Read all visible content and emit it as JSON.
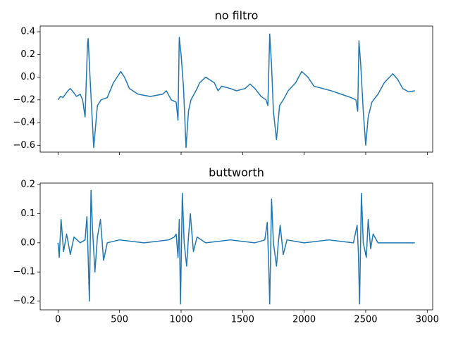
{
  "chart_data": [
    {
      "type": "line",
      "title": "no filtro",
      "color": "#1f77b4",
      "x": [
        0,
        20,
        40,
        60,
        80,
        100,
        130,
        150,
        180,
        200,
        220,
        240,
        245,
        260,
        290,
        320,
        350,
        400,
        450,
        510,
        540,
        580,
        650,
        750,
        850,
        880,
        920,
        960,
        975,
        985,
        1000,
        1020,
        1040,
        1060,
        1080,
        1130,
        1150,
        1200,
        1270,
        1300,
        1330,
        1400,
        1450,
        1520,
        1560,
        1600,
        1650,
        1690,
        1705,
        1720,
        1735,
        1750,
        1775,
        1800,
        1830,
        1870,
        1930,
        1980,
        2030,
        2080,
        2150,
        2220,
        2300,
        2380,
        2420,
        2435,
        2445,
        2460,
        2480,
        2500,
        2520,
        2550,
        2600,
        2650,
        2720,
        2760,
        2800,
        2850,
        2899
      ],
      "values": [
        -0.2,
        -0.17,
        -0.18,
        -0.15,
        -0.12,
        -0.1,
        -0.14,
        -0.17,
        -0.15,
        -0.2,
        -0.35,
        0.3,
        0.34,
        0.0,
        -0.62,
        -0.25,
        -0.2,
        -0.18,
        -0.05,
        0.05,
        0.0,
        -0.1,
        -0.15,
        -0.17,
        -0.15,
        -0.12,
        -0.2,
        -0.22,
        -0.38,
        0.35,
        0.2,
        -0.1,
        -0.62,
        -0.3,
        -0.2,
        -0.1,
        -0.05,
        0.0,
        -0.05,
        -0.12,
        -0.08,
        -0.1,
        -0.12,
        -0.1,
        -0.06,
        -0.1,
        -0.17,
        -0.2,
        -0.25,
        0.38,
        0.1,
        -0.3,
        -0.55,
        -0.25,
        -0.2,
        -0.12,
        -0.05,
        0.05,
        0.0,
        -0.08,
        -0.1,
        -0.12,
        -0.15,
        -0.18,
        -0.2,
        -0.3,
        0.32,
        0.1,
        -0.3,
        -0.6,
        -0.35,
        -0.22,
        -0.15,
        -0.05,
        0.03,
        -0.02,
        -0.1,
        -0.13,
        -0.12
      ],
      "xlim": [
        -145,
        3044
      ],
      "ylim": [
        -0.66,
        0.45
      ],
      "yticks": [
        {
          "value": -0.6,
          "label": "−0.6"
        },
        {
          "value": -0.4,
          "label": "−0.4"
        },
        {
          "value": -0.2,
          "label": "−0.2"
        },
        {
          "value": 0,
          "label": "0.0"
        },
        {
          "value": 0.2,
          "label": "0.2"
        },
        {
          "value": 0.4,
          "label": "0.4"
        }
      ]
    },
    {
      "type": "line",
      "title": "buttworth",
      "color": "#1f77b4",
      "x": [
        0,
        10,
        25,
        45,
        70,
        100,
        130,
        180,
        220,
        235,
        245,
        255,
        268,
        280,
        300,
        320,
        345,
        370,
        400,
        500,
        700,
        900,
        945,
        960,
        975,
        985,
        995,
        1010,
        1025,
        1045,
        1060,
        1075,
        1100,
        1130,
        1200,
        1400,
        1600,
        1680,
        1700,
        1710,
        1720,
        1735,
        1750,
        1775,
        1790,
        1805,
        1830,
        1860,
        2000,
        2200,
        2400,
        2430,
        2440,
        2450,
        2465,
        2480,
        2505,
        2520,
        2540,
        2560,
        2600,
        2899
      ],
      "values": [
        0,
        -0.05,
        0.08,
        -0.03,
        0.03,
        -0.04,
        0.02,
        0,
        0.01,
        0.09,
        -0.05,
        -0.2,
        0.18,
        0.05,
        -0.1,
        0.02,
        0.08,
        -0.06,
        0,
        0.01,
        0,
        0.01,
        0.02,
        0.03,
        -0.05,
        0.08,
        -0.21,
        0.17,
        0,
        -0.08,
        0.02,
        0.1,
        -0.03,
        0.02,
        0,
        0.01,
        0,
        0.01,
        0.07,
        -0.05,
        -0.21,
        0.15,
        0,
        -0.08,
        0,
        0.06,
        -0.04,
        0.01,
        0,
        0.01,
        0,
        0.06,
        -0.03,
        -0.21,
        0.17,
        0,
        -0.05,
        0.08,
        -0.02,
        0.03,
        0,
        0
      ],
      "xlim": [
        -145,
        3044
      ],
      "ylim": [
        -0.23,
        0.205
      ],
      "xticks": [
        0,
        500,
        1000,
        1500,
        2000,
        2500,
        3000
      ],
      "yticks": [
        {
          "value": -0.2,
          "label": "−0.2"
        },
        {
          "value": -0.1,
          "label": "−0.1"
        },
        {
          "value": 0,
          "label": "0.0"
        },
        {
          "value": 0.1,
          "label": "0.1"
        },
        {
          "value": 0.2,
          "label": "0.2"
        }
      ]
    }
  ]
}
